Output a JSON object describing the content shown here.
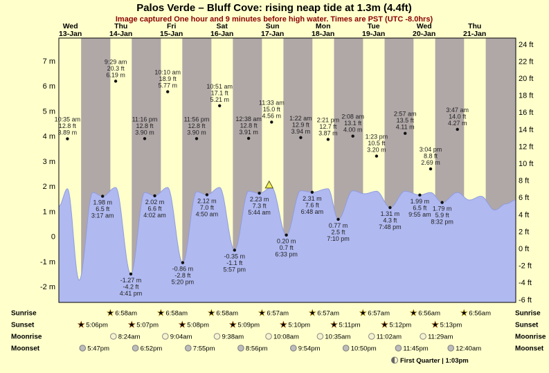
{
  "title": "Palos Verde – Bluff Cove: rising neap tide at 1.3m (4.4ft)",
  "subtitle": "Image captured One hour and 9 minutes before high water. Times are PST (UTC -8.0hrs)",
  "colors": {
    "background": "#ffffcc",
    "night_band": "#b0a7a7",
    "day_band": "#ffffcc",
    "tide_fill": "#b0b9f0",
    "tide_edge": "#8f9ce0",
    "day_label": "#cc0000",
    "subtitle": "#8b0000",
    "annotation": "#222222",
    "sunrise_star": "#f5c518",
    "sunset_star": "#e87722",
    "moonrise_fill": "#f7f3cd",
    "moonset_fill": "#bdbdbd",
    "marker_fill": "#f2ef5c"
  },
  "chart_data": {
    "type": "area",
    "series_name": "tide height",
    "x_axis": "time PST, Wed 13-Jan 06:30 through Fri 22-Jan early morning",
    "y_left": {
      "unit": "m",
      "range": [
        -2.6,
        7.9
      ],
      "ticks": [
        {
          "label": "7 m",
          "v": 7
        },
        {
          "label": "6 m",
          "v": 6
        },
        {
          "label": "5 m",
          "v": 5
        },
        {
          "label": "4 m",
          "v": 4
        },
        {
          "label": "3 m",
          "v": 3
        },
        {
          "label": "2 m",
          "v": 2
        },
        {
          "label": "1 m",
          "v": 1
        },
        {
          "label": "0",
          "v": 0
        },
        {
          "label": "-1 m",
          "v": -1
        },
        {
          "label": "-2 m",
          "v": -2
        }
      ]
    },
    "y_right": {
      "unit": "ft",
      "range": [
        -6,
        24
      ],
      "ticks": [
        {
          "label": "24 ft",
          "f": 24
        },
        {
          "label": "22 ft",
          "f": 22
        },
        {
          "label": "20 ft",
          "f": 20
        },
        {
          "label": "18 ft",
          "f": 18
        },
        {
          "label": "16 ft",
          "f": 16
        },
        {
          "label": "14 ft",
          "f": 14
        },
        {
          "label": "12 ft",
          "f": 12
        },
        {
          "label": "10 ft",
          "f": 10
        },
        {
          "label": "8 ft",
          "f": 8
        },
        {
          "label": "6 ft",
          "f": 6
        },
        {
          "label": "4 ft",
          "f": 4
        },
        {
          "label": "2 ft",
          "f": 2
        },
        {
          "label": "0 ft",
          "f": 0
        },
        {
          "label": "-2 ft",
          "f": -2
        },
        {
          "label": "-4 ft",
          "f": -4
        },
        {
          "label": "-6 ft",
          "f": -6
        }
      ]
    },
    "days": [
      {
        "name": "Wed",
        "date": "13-Jan",
        "noon_t": 12
      },
      {
        "name": "Thu",
        "date": "14-Jan",
        "noon_t": 36
      },
      {
        "name": "Fri",
        "date": "15-Jan",
        "noon_t": 60
      },
      {
        "name": "Sat",
        "date": "16-Jan",
        "noon_t": 84
      },
      {
        "name": "Sun",
        "date": "17-Jan",
        "noon_t": 108
      },
      {
        "name": "Mon",
        "date": "18-Jan",
        "noon_t": 132
      },
      {
        "name": "Tue",
        "date": "19-Jan",
        "noon_t": 156
      },
      {
        "name": "Wed",
        "date": "20-Jan",
        "noon_t": 180
      },
      {
        "name": "Thu",
        "date": "21-Jan",
        "noon_t": 204
      }
    ],
    "night_bands": [
      [
        17.1,
        30.967
      ],
      [
        41.117,
        54.967
      ],
      [
        65.133,
        78.967
      ],
      [
        89.15,
        102.95
      ],
      [
        113.167,
        126.95
      ],
      [
        137.183,
        150.95
      ],
      [
        161.2,
        174.933
      ],
      [
        185.217,
        198.933
      ],
      [
        209.217,
        223.5
      ]
    ],
    "tide_events": [
      {
        "lines": [
          "10:35 am",
          "12.8 ft",
          "3.89 m"
        ],
        "t": 10.58,
        "v": 3.89,
        "text": "above"
      },
      {
        "lines": [
          "9:29 am",
          "20.3 ft",
          "6.19 m"
        ],
        "t": 33.48,
        "v": 6.19,
        "text": "above"
      },
      {
        "lines": [
          "11:16 pm",
          "12.8 ft",
          "3.90 m"
        ],
        "t": 47.27,
        "v": 3.9,
        "text": "above"
      },
      {
        "lines": [
          "10:10 am",
          "18.9 ft",
          "5.77 m"
        ],
        "t": 58.17,
        "v": 5.77,
        "text": "above"
      },
      {
        "lines": [
          "11:56 pm",
          "12.8 ft",
          "3.90 m"
        ],
        "t": 71.93,
        "v": 3.9,
        "text": "above"
      },
      {
        "lines": [
          "10:51 am",
          "17.1 ft",
          "5.21 m"
        ],
        "t": 82.85,
        "v": 5.21,
        "text": "above"
      },
      {
        "lines": [
          "12:38 am",
          "12.8 ft",
          "3.91 m"
        ],
        "t": 96.63,
        "v": 3.91,
        "text": "above"
      },
      {
        "lines": [
          "11:33 am",
          "15.0 ft",
          "4.56 m"
        ],
        "t": 107.55,
        "v": 4.56,
        "text": "above"
      },
      {
        "lines": [
          "1:22 am",
          "12.9 ft",
          "3.94 m"
        ],
        "t": 121.37,
        "v": 3.94,
        "text": "above"
      },
      {
        "lines": [
          "2:21 pm",
          "12.7 ft",
          "3.87 m"
        ],
        "t": 134.35,
        "v": 3.87,
        "text": "above"
      },
      {
        "lines": [
          "2:08 am",
          "13.1 ft",
          "4.00 m"
        ],
        "t": 146.13,
        "v": 4.0,
        "text": "above"
      },
      {
        "lines": [
          "1:23 pm",
          "10.5 ft",
          "3.20 m"
        ],
        "t": 157.38,
        "v": 3.2,
        "text": "above"
      },
      {
        "lines": [
          "2:57 am",
          "13.5 ft",
          "4.11 m"
        ],
        "t": 170.95,
        "v": 4.11,
        "text": "above"
      },
      {
        "lines": [
          "3:04 pm",
          "8.8 ft",
          "2.69 m"
        ],
        "t": 183.07,
        "v": 2.69,
        "text": "above"
      },
      {
        "lines": [
          "3:47 am",
          "14.0 ft",
          "4.27 m"
        ],
        "t": 195.78,
        "v": 4.27,
        "text": "above"
      },
      {
        "lines": [
          "1.98 m",
          "6.5 ft",
          "3:17 am"
        ],
        "t": 27.28,
        "v": 1.6,
        "text": "below"
      },
      {
        "lines": [
          "2.02 m",
          "6.6 ft",
          "4:02 am"
        ],
        "t": 52.03,
        "v": 1.62,
        "text": "below"
      },
      {
        "lines": [
          "2.12 m",
          "7.0 ft",
          "4:50 am"
        ],
        "t": 76.83,
        "v": 1.66,
        "text": "below"
      },
      {
        "lines": [
          "2.23 m",
          "7.3 ft",
          "5:44 am"
        ],
        "t": 101.73,
        "v": 1.72,
        "text": "below"
      },
      {
        "lines": [
          "2.31 m",
          "7.6 ft",
          "6:48 am"
        ],
        "t": 126.8,
        "v": 1.76,
        "text": "below"
      },
      {
        "lines": [
          "0.77 m",
          "2.5 ft",
          "7:10 pm"
        ],
        "t": 139.17,
        "v": 0.68,
        "text": "below"
      },
      {
        "lines": [
          "1.31 m",
          "4.3 ft",
          "7:48 pm"
        ],
        "t": 163.8,
        "v": 1.15,
        "text": "below"
      },
      {
        "lines": [
          "1.99 m",
          "6.5 ft",
          "9:55 am"
        ],
        "t": 177.92,
        "v": 1.65,
        "text": "below"
      },
      {
        "lines": [
          "1.79 m",
          "5.9 ft",
          "8:32 pm"
        ],
        "t": 188.53,
        "v": 1.35,
        "text": "below"
      },
      {
        "lines": [
          "-1.27 m",
          "-4.2 ft",
          "4:41 pm"
        ],
        "t": 40.68,
        "v": -1.5,
        "text": "below"
      },
      {
        "lines": [
          "-0.86 m",
          "-2.8 ft",
          "5:20 pm"
        ],
        "t": 65.33,
        "v": -1.05,
        "text": "below"
      },
      {
        "lines": [
          "-0.35 m",
          "-1.1 ft",
          "5:57 pm"
        ],
        "t": 89.95,
        "v": -0.55,
        "text": "below"
      },
      {
        "lines": [
          "0.20 m",
          "0.7 ft",
          "6:33 pm"
        ],
        "t": 114.55,
        "v": 0.05,
        "text": "below"
      }
    ],
    "curve_keyframes": [
      [
        6.5,
        1.2
      ],
      [
        10.58,
        1.9
      ],
      [
        16.15,
        -1.75
      ],
      [
        22.6,
        1.75
      ],
      [
        27.28,
        1.6
      ],
      [
        33.48,
        1.95
      ],
      [
        40.68,
        -1.5
      ],
      [
        47.27,
        1.75
      ],
      [
        52.03,
        1.62
      ],
      [
        58.17,
        1.95
      ],
      [
        65.33,
        -1.05
      ],
      [
        71.93,
        1.78
      ],
      [
        76.83,
        1.66
      ],
      [
        82.85,
        1.95
      ],
      [
        89.95,
        -0.55
      ],
      [
        96.63,
        1.8
      ],
      [
        101.73,
        1.72
      ],
      [
        107.55,
        1.95
      ],
      [
        114.55,
        0.05
      ],
      [
        121.37,
        1.82
      ],
      [
        126.8,
        1.76
      ],
      [
        134.35,
        1.9
      ],
      [
        139.17,
        0.68
      ],
      [
        146.13,
        1.82
      ],
      [
        151.7,
        1.7
      ],
      [
        157.38,
        1.8
      ],
      [
        163.8,
        1.15
      ],
      [
        170.95,
        1.8
      ],
      [
        177.92,
        1.65
      ],
      [
        183.07,
        1.75
      ],
      [
        188.53,
        1.35
      ],
      [
        195.78,
        1.75
      ],
      [
        201.5,
        1.45
      ],
      [
        207,
        1.6
      ],
      [
        213.5,
        1.05
      ],
      [
        219,
        1.3
      ],
      [
        223.5,
        1.45
      ]
    ],
    "current_marker": {
      "t": 106.4,
      "level_text": "1.3m (4.4ft)"
    }
  },
  "astro": {
    "row_labels": [
      "Sunrise",
      "Sunset",
      "Moonrise",
      "Moonset"
    ],
    "sunrise": [
      {
        "time": "6:58am",
        "t": 30.967
      },
      {
        "time": "6:58am",
        "t": 54.967
      },
      {
        "time": "6:58am",
        "t": 78.967
      },
      {
        "time": "6:57am",
        "t": 102.95
      },
      {
        "time": "6:57am",
        "t": 126.95
      },
      {
        "time": "6:57am",
        "t": 150.95
      },
      {
        "time": "6:56am",
        "t": 174.933
      },
      {
        "time": "6:56am",
        "t": 198.933
      }
    ],
    "sunset": [
      {
        "time": "5:06pm",
        "t": 17.1
      },
      {
        "time": "5:07pm",
        "t": 41.117
      },
      {
        "time": "5:08pm",
        "t": 65.133
      },
      {
        "time": "5:09pm",
        "t": 89.15
      },
      {
        "time": "5:10pm",
        "t": 113.167
      },
      {
        "time": "5:11pm",
        "t": 137.183
      },
      {
        "time": "5:12pm",
        "t": 161.2
      },
      {
        "time": "5:13pm",
        "t": 185.217
      }
    ],
    "moonrise": [
      {
        "time": "8:24am",
        "t": 32.4
      },
      {
        "time": "9:04am",
        "t": 57.067
      },
      {
        "time": "9:38am",
        "t": 81.633
      },
      {
        "time": "10:08am",
        "t": 106.133
      },
      {
        "time": "10:35am",
        "t": 130.583
      },
      {
        "time": "11:02am",
        "t": 155.033
      },
      {
        "time": "11:29am",
        "t": 179.483
      }
    ],
    "moonset": [
      {
        "time": "5:47pm",
        "t": 17.783
      },
      {
        "time": "6:52pm",
        "t": 42.867
      },
      {
        "time": "7:55pm",
        "t": 67.917
      },
      {
        "time": "8:56pm",
        "t": 92.933
      },
      {
        "time": "9:54pm",
        "t": 117.9
      },
      {
        "time": "10:50pm",
        "t": 142.833
      },
      {
        "time": "11:45pm",
        "t": 167.75
      },
      {
        "time": "12:40am",
        "t": 192.667
      }
    ],
    "moon_phase": "First Quarter | 1:03pm"
  }
}
